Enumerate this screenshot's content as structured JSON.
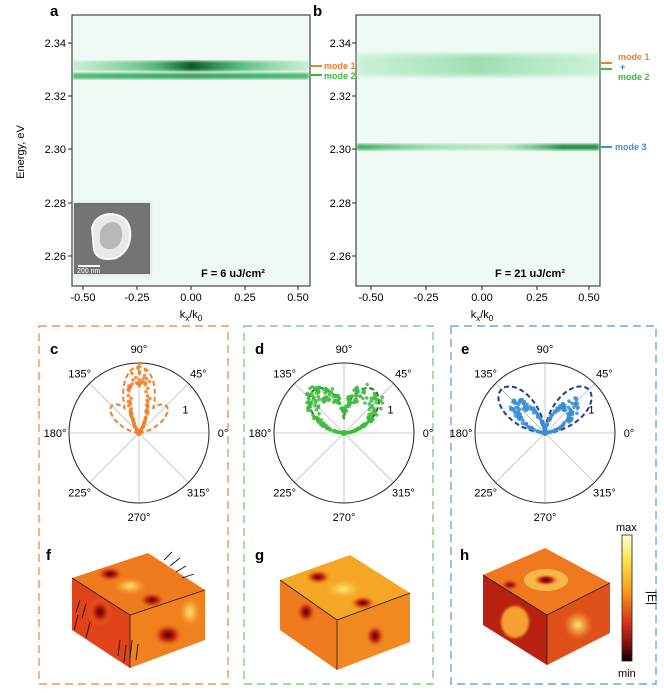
{
  "panels": {
    "a": "a",
    "b": "b",
    "c": "c",
    "d": "d",
    "e": "e",
    "f": "f",
    "g": "g",
    "h": "h"
  },
  "spectra": {
    "ylabel": "Energy, eV",
    "xlabel_main": "k",
    "xlabel_sub1": "x",
    "xlabel_div": "/k",
    "xlabel_sub2": "0",
    "yticks": [
      "2.34",
      "2.32",
      "2.30",
      "2.28",
      "2.26"
    ],
    "xticks": [
      "-0.50",
      "-0.25",
      "0.00",
      "0.25",
      "0.50"
    ],
    "a": {
      "fluence": "F = 6 uJ/cm²",
      "scalebar": "200 nm",
      "modes": [
        {
          "label": "mode 1",
          "energy": 2.331,
          "color": "#f07f2a"
        },
        {
          "label": "mode 2",
          "energy": 2.3265,
          "color": "#3dbb3d"
        }
      ]
    },
    "b": {
      "fluence": "F = 21 uJ/cm²",
      "modes": [
        {
          "label": "mode 1",
          "color": "#f07f2a"
        },
        {
          "label": "+",
          "color": "#2a7fd4"
        },
        {
          "label": "mode 2",
          "color": "#3dbb3d"
        },
        {
          "label": "mode 3",
          "energy": 2.301,
          "color": "#3a8fd4"
        }
      ]
    }
  },
  "polar": {
    "angles": [
      "90°",
      "45°",
      "0°",
      "315°",
      "270°",
      "225°",
      "180°",
      "135°"
    ],
    "radius_label": "1",
    "c_color": "#f07f2a",
    "d_color": "#3dbb3d",
    "e_color": "#3a8fd4"
  },
  "colorbar": {
    "max": "max",
    "min": "min",
    "label": "|E|"
  },
  "colors": {
    "orange": "#f07f2a",
    "green": "#5cc85c",
    "blue": "#5aa0d8"
  }
}
